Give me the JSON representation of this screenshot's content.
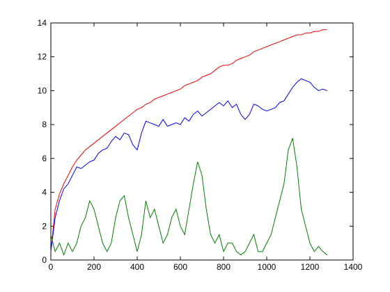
{
  "chart_data": {
    "type": "line",
    "x": [
      0,
      20,
      40,
      60,
      80,
      100,
      120,
      140,
      160,
      180,
      200,
      220,
      240,
      260,
      280,
      300,
      320,
      340,
      360,
      380,
      400,
      420,
      440,
      460,
      480,
      500,
      520,
      540,
      560,
      580,
      600,
      620,
      640,
      660,
      680,
      700,
      720,
      740,
      760,
      780,
      800,
      820,
      840,
      860,
      880,
      900,
      920,
      940,
      960,
      980,
      1000,
      1020,
      1040,
      1060,
      1080,
      1100,
      1120,
      1140,
      1160,
      1180,
      1200,
      1220,
      1240,
      1260,
      1280
    ],
    "series": [
      {
        "color": "#ff0000",
        "values": [
          0.5,
          3.0,
          3.9,
          4.5,
          5.0,
          5.5,
          5.9,
          6.2,
          6.5,
          6.7,
          6.9,
          7.1,
          7.3,
          7.5,
          7.7,
          7.9,
          8.1,
          8.3,
          8.5,
          8.7,
          8.9,
          9.0,
          9.2,
          9.3,
          9.5,
          9.6,
          9.7,
          9.8,
          9.9,
          10.0,
          10.1,
          10.3,
          10.4,
          10.5,
          10.6,
          10.8,
          10.9,
          11.0,
          11.2,
          11.4,
          11.5,
          11.5,
          11.6,
          11.8,
          11.9,
          12.0,
          12.1,
          12.3,
          12.4,
          12.5,
          12.6,
          12.7,
          12.8,
          12.9,
          13.0,
          13.1,
          13.2,
          13.3,
          13.3,
          13.4,
          13.4,
          13.5,
          13.5,
          13.6,
          13.6
        ]
      },
      {
        "color": "#0000ff",
        "values": [
          0.5,
          2.5,
          3.5,
          4.2,
          4.5,
          5.0,
          5.5,
          5.4,
          5.6,
          5.8,
          5.9,
          6.3,
          6.5,
          6.6,
          7.0,
          7.3,
          7.1,
          7.5,
          7.4,
          6.8,
          6.5,
          7.5,
          8.2,
          8.1,
          8.0,
          7.9,
          8.3,
          7.9,
          8.0,
          8.1,
          8.0,
          8.4,
          8.2,
          8.6,
          8.8,
          8.5,
          8.7,
          8.9,
          9.1,
          9.3,
          9.1,
          9.4,
          9.0,
          9.2,
          8.6,
          8.3,
          8.6,
          9.2,
          9.1,
          8.9,
          8.8,
          8.9,
          9.0,
          9.3,
          9.4,
          9.8,
          10.2,
          10.5,
          10.7,
          10.6,
          10.5,
          10.2,
          10.0,
          10.1,
          10.0
        ]
      },
      {
        "color": "#008000",
        "values": [
          1.5,
          0.5,
          1.0,
          0.3,
          1.0,
          0.5,
          1.0,
          2.0,
          2.5,
          3.5,
          3.0,
          2.0,
          1.0,
          0.5,
          1.0,
          2.5,
          3.5,
          3.8,
          2.5,
          1.5,
          0.5,
          1.5,
          3.5,
          2.5,
          3.0,
          2.0,
          1.0,
          1.5,
          2.5,
          3.0,
          2.0,
          1.5,
          3.0,
          4.5,
          5.8,
          5.0,
          3.0,
          1.5,
          1.0,
          1.5,
          0.5,
          1.0,
          1.0,
          0.5,
          0.3,
          0.5,
          1.0,
          1.5,
          0.5,
          0.5,
          1.0,
          1.5,
          2.5,
          3.5,
          4.5,
          6.5,
          7.2,
          5.5,
          3.0,
          2.0,
          1.0,
          0.5,
          0.8,
          0.5,
          0.3
        ]
      }
    ],
    "xlim": [
      0,
      1400
    ],
    "ylim": [
      0,
      14
    ],
    "xticks": [
      0,
      200,
      400,
      600,
      800,
      1000,
      1200,
      1400
    ],
    "yticks": [
      0,
      2,
      4,
      6,
      8,
      10,
      12,
      14
    ]
  }
}
